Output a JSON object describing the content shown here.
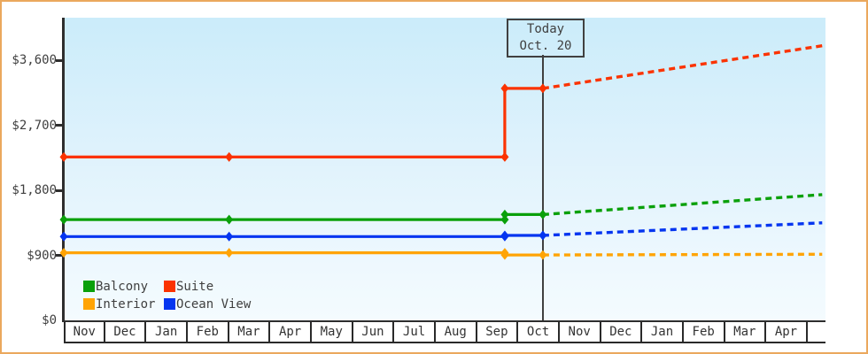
{
  "frame": {
    "border_color": "#EBA85D",
    "background_color": "#FFFFFF",
    "plot_gradient_top": "#CBECFA",
    "plot_gradient_bottom": "#F4FBFE",
    "axis_color": "#2E2E2E",
    "text_color": "#3F3F3F"
  },
  "today_flag": {
    "line1": "Today",
    "line2": "Oct. 20"
  },
  "legend": {
    "items": [
      {
        "label": "Balcony",
        "color": "#0AA00A"
      },
      {
        "label": "Suite",
        "color": "#FB3300"
      },
      {
        "label": "Interior",
        "color": "#FFA405"
      },
      {
        "label": "Ocean View",
        "color": "#0435F0"
      }
    ]
  },
  "chart_data": {
    "type": "line",
    "title": "",
    "xlabel": "",
    "ylabel": "",
    "x_axis_unit": "months (0 = Nov 1 of first year)",
    "months": [
      "Nov",
      "Dec",
      "Jan",
      "Feb",
      "Mar",
      "Apr",
      "May",
      "Jun",
      "Jul",
      "Aug",
      "Sep",
      "Oct",
      "Nov",
      "Dec",
      "Jan",
      "Feb",
      "Mar",
      "Apr"
    ],
    "y_ticks": [
      {
        "label": "$0",
        "value": 0
      },
      {
        "label": "$900",
        "value": 900
      },
      {
        "label": "$1,800",
        "value": 1800
      },
      {
        "label": "$2,700",
        "value": 2700
      },
      {
        "label": "$3,600",
        "value": 3600
      }
    ],
    "ylim": [
      0,
      4190
    ],
    "xlim_month_units": [
      0,
      18.43
    ],
    "grid": false,
    "legend_position": "bottom-left-inside",
    "today": {
      "x_month_units": 11.59,
      "date_label": "Oct. 20"
    },
    "series": [
      {
        "name": "Balcony",
        "color": "#0AA00A",
        "history": [
          [
            0,
            1395
          ],
          [
            4,
            1395
          ],
          [
            10.67,
            1395
          ],
          [
            10.67,
            1465
          ],
          [
            11.59,
            1465
          ]
        ],
        "forecast": [
          [
            11.59,
            1465
          ],
          [
            18.35,
            1740
          ]
        ]
      },
      {
        "name": "Interior",
        "color": "#FFA405",
        "history": [
          [
            0,
            935
          ],
          [
            4,
            935
          ],
          [
            10.67,
            935
          ],
          [
            10.67,
            905
          ],
          [
            11.59,
            905
          ]
        ],
        "forecast": [
          [
            11.59,
            905
          ],
          [
            18.35,
            915
          ]
        ]
      },
      {
        "name": "Ocean View",
        "color": "#0435F0",
        "history": [
          [
            0,
            1160
          ],
          [
            4,
            1160
          ],
          [
            10.67,
            1160
          ],
          [
            10.67,
            1175
          ],
          [
            11.59,
            1175
          ]
        ],
        "forecast": [
          [
            11.59,
            1175
          ],
          [
            18.35,
            1350
          ]
        ]
      },
      {
        "name": "Suite",
        "color": "#FB3300",
        "history": [
          [
            0,
            2260
          ],
          [
            4,
            2260
          ],
          [
            10.67,
            2260
          ],
          [
            10.67,
            3210
          ],
          [
            11.59,
            3210
          ]
        ],
        "forecast": [
          [
            11.59,
            3210
          ],
          [
            18.35,
            3800
          ]
        ]
      }
    ]
  }
}
